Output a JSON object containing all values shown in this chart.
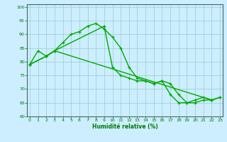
{
  "line1_x": [
    0,
    1,
    2,
    3,
    4,
    5,
    6,
    7,
    8,
    9,
    10,
    11,
    12,
    13,
    14,
    15,
    16,
    17,
    18,
    19,
    20,
    21,
    22
  ],
  "line1_y": [
    79,
    84,
    82,
    84,
    87,
    90,
    91,
    93,
    94,
    92,
    89,
    85,
    78,
    74,
    73,
    72,
    73,
    68,
    65,
    65,
    66,
    67,
    66
  ],
  "line2_x": [
    0,
    2,
    3,
    9,
    10,
    11,
    12,
    13,
    14,
    15,
    16,
    17,
    18,
    19,
    20,
    21,
    22,
    23
  ],
  "line2_y": [
    79,
    82,
    84,
    93,
    78,
    75,
    74,
    73,
    73,
    72,
    73,
    72,
    68,
    65,
    65,
    66,
    66,
    67
  ],
  "line3_x": [
    0,
    2,
    3,
    22,
    23
  ],
  "line3_y": [
    79,
    82,
    84,
    66,
    67
  ],
  "xlim": [
    -0.3,
    23.3
  ],
  "ylim": [
    60,
    101
  ],
  "yticks": [
    60,
    65,
    70,
    75,
    80,
    85,
    90,
    95,
    100
  ],
  "xticks": [
    0,
    1,
    2,
    3,
    4,
    5,
    6,
    7,
    8,
    9,
    10,
    11,
    12,
    13,
    14,
    15,
    16,
    17,
    18,
    19,
    20,
    21,
    22,
    23
  ],
  "xlabel": "Humidité relative (%)",
  "bg_color": "#cceeff",
  "grid_color": "#99cccc",
  "line_color": "#00aa00",
  "tick_color": "#007700",
  "label_color": "#007700"
}
